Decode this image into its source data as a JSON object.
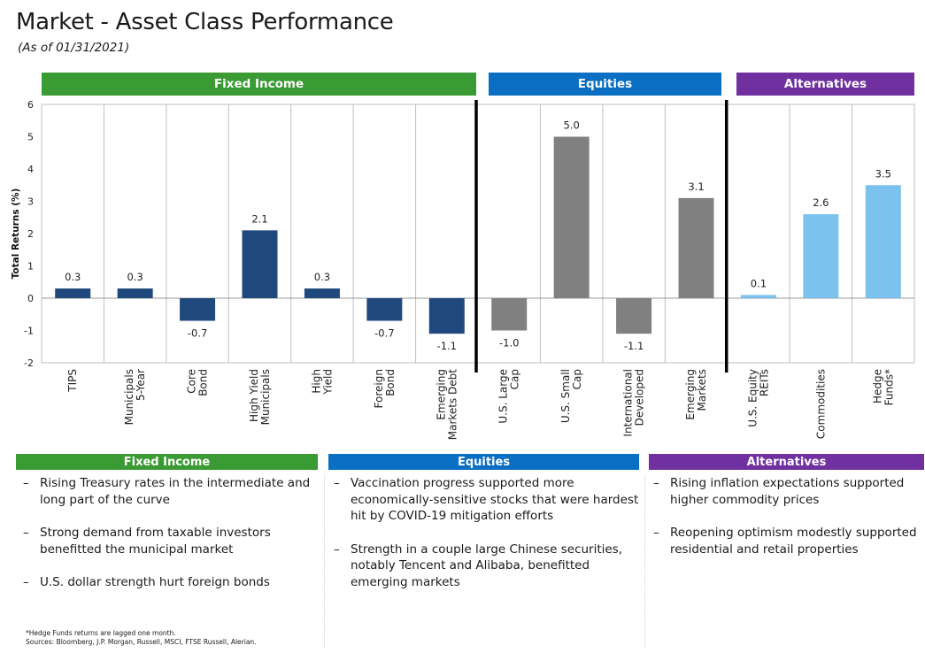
{
  "header": {
    "title": "Market - Asset Class Performance",
    "subtitle": "(As of 01/31/2021)"
  },
  "groups": {
    "fixed_income": "Fixed Income",
    "equities": "Equities",
    "alternatives": "Alternatives"
  },
  "colors": {
    "fixed_income": "#3a9a34",
    "equities": "#0a6fc2",
    "alternatives": "#7030a0",
    "bar_fixed_income": "#1f497d",
    "bar_equities": "#808080",
    "bar_alternatives": "#7cc2ee"
  },
  "chart_data": {
    "type": "bar",
    "ylabel": "Total Returns (%)",
    "ylim": [
      -2,
      6
    ],
    "yticks": [
      -2,
      -1,
      0,
      1,
      2,
      3,
      4,
      5,
      6
    ],
    "grid": "vertical category dividers",
    "categories": [
      "TIPS",
      "Municipals 5-Year",
      "Core Bond",
      "High Yield Municipals",
      "High Yield",
      "Foreign Bond",
      "Emerging Markets Debt",
      "U.S. Large Cap",
      "U.S. Small Cap",
      "International Developed",
      "Emerging Markets",
      "U.S. Equity REITs",
      "Commodities",
      "Hedge Funds*"
    ],
    "category_lines": [
      [
        "TIPS"
      ],
      [
        "Municipals",
        "5-Year"
      ],
      [
        "Core",
        "Bond"
      ],
      [
        "High Yield",
        "Municipals"
      ],
      [
        "High",
        "Yield"
      ],
      [
        "Foreign",
        "Bond"
      ],
      [
        "Emerging",
        "Markets Debt"
      ],
      [
        "U.S. Large",
        "Cap"
      ],
      [
        "U.S. Small",
        "Cap"
      ],
      [
        "International",
        "Developed"
      ],
      [
        "Emerging",
        "Markets"
      ],
      [
        "U.S. Equity",
        "REITs"
      ],
      [
        "Commodities"
      ],
      [
        "Hedge",
        "Funds*"
      ]
    ],
    "values": [
      0.3,
      0.3,
      -0.7,
      2.1,
      0.3,
      -0.7,
      -1.1,
      -1.0,
      5.0,
      -1.1,
      3.1,
      0.1,
      2.6,
      3.5
    ],
    "data_labels": [
      "0.3",
      "0.3",
      "-0.7",
      "2.1",
      "0.3",
      "-0.7",
      "-1.1",
      "-1.0",
      "5.0",
      "-1.1",
      "3.1",
      "0.1",
      "2.6",
      "3.5"
    ],
    "groups": [
      "fixed_income",
      "fixed_income",
      "fixed_income",
      "fixed_income",
      "fixed_income",
      "fixed_income",
      "fixed_income",
      "equities",
      "equities",
      "equities",
      "equities",
      "alternatives",
      "alternatives",
      "alternatives"
    ]
  },
  "commentary": {
    "fixed_income": [
      "Rising Treasury rates in the intermediate and long part of the curve",
      "Strong demand from taxable investors benefitted the municipal market",
      "U.S. dollar strength hurt foreign bonds"
    ],
    "equities": [
      "Vaccination progress supported more economically-sensitive stocks that were hardest hit by COVID-19 mitigation efforts",
      "Strength in a couple large Chinese securities, notably Tencent and Alibaba, benefitted emerging markets"
    ],
    "alternatives": [
      "Rising inflation expectations supported higher commodity prices",
      "Reopening optimism modestly supported residential and retail properties"
    ]
  },
  "footnotes": {
    "hedge": "*Hedge Funds returns are lagged one month.",
    "sources": "Sources: Bloomberg, J.P. Morgan, Russell, MSCI, FTSE Russell, Alerian."
  }
}
